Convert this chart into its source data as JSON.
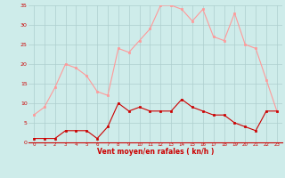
{
  "x": [
    0,
    1,
    2,
    3,
    4,
    5,
    6,
    7,
    8,
    9,
    10,
    11,
    12,
    13,
    14,
    15,
    16,
    17,
    18,
    19,
    20,
    21,
    22,
    23
  ],
  "vent_moyen": [
    1,
    1,
    1,
    3,
    3,
    3,
    1,
    4,
    10,
    8,
    9,
    8,
    8,
    8,
    11,
    9,
    8,
    7,
    7,
    5,
    4,
    3,
    8,
    8
  ],
  "rafales": [
    7,
    9,
    14,
    20,
    19,
    17,
    13,
    12,
    24,
    23,
    26,
    29,
    35,
    35,
    34,
    31,
    34,
    27,
    26,
    33,
    25,
    24,
    16,
    8
  ],
  "bg_color": "#ceecea",
  "grid_color": "#aecece",
  "line_color_moyen": "#cc0000",
  "line_color_rafales": "#ff9999",
  "xlabel": "Vent moyen/en rafales ( kn/h )",
  "ylim": [
    0,
    35
  ],
  "yticks": [
    0,
    5,
    10,
    15,
    20,
    25,
    30,
    35
  ],
  "xticks": [
    0,
    1,
    2,
    3,
    4,
    5,
    6,
    7,
    8,
    9,
    10,
    11,
    12,
    13,
    14,
    15,
    16,
    17,
    18,
    19,
    20,
    21,
    22,
    23
  ],
  "markersize": 2.0,
  "linewidth": 0.8
}
